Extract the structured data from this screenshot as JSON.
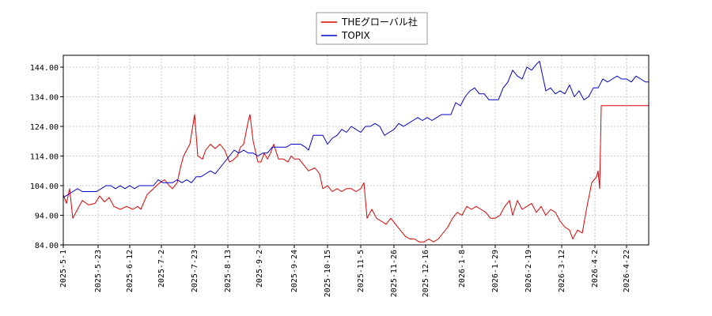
{
  "chart_data": {
    "type": "line",
    "title": "",
    "xlabel": "",
    "ylabel": "",
    "ylim": [
      84,
      148
    ],
    "xlim": [
      "2025-05-01",
      "2026-05-06"
    ],
    "grid": true,
    "legend_position": "top-center",
    "y_ticks": [
      "84.00",
      "94.00",
      "104.00",
      "114.00",
      "124.00",
      "134.00",
      "144.00"
    ],
    "x_ticks": [
      "2025-5-1",
      "2025-5-23",
      "2025-6-12",
      "2025-7-2",
      "2025-7-23",
      "2025-8-13",
      "2025-9-2",
      "2025-9-24",
      "2025-10-15",
      "2025-11-5",
      "2025-11-26",
      "2025-12-16",
      "2026-1-8",
      "2026-1-29",
      "2026-2-19",
      "2026-3-12",
      "2026-4-2",
      "2026-4-22"
    ],
    "series": [
      {
        "name": "THEグローバル社",
        "color": "#dd0000",
        "points": [
          [
            "2025-05-01",
            101.0
          ],
          [
            "2025-05-03",
            98.0
          ],
          [
            "2025-05-05",
            103.0
          ],
          [
            "2025-05-07",
            93.0
          ],
          [
            "2025-05-10",
            96.0
          ],
          [
            "2025-05-13",
            99.0
          ],
          [
            "2025-05-17",
            97.5
          ],
          [
            "2025-05-21",
            98.0
          ],
          [
            "2025-05-24",
            100.5
          ],
          [
            "2025-05-27",
            98.5
          ],
          [
            "2025-05-30",
            100.0
          ],
          [
            "2025-06-02",
            97.0
          ],
          [
            "2025-06-06",
            96.0
          ],
          [
            "2025-06-10",
            97.0
          ],
          [
            "2025-06-14",
            96.0
          ],
          [
            "2025-06-17",
            97.0
          ],
          [
            "2025-06-19",
            96.0
          ],
          [
            "2025-06-23",
            101.0
          ],
          [
            "2025-06-27",
            103.0
          ],
          [
            "2025-07-01",
            105.0
          ],
          [
            "2025-07-04",
            106.0
          ],
          [
            "2025-07-07",
            104.0
          ],
          [
            "2025-07-09",
            103.0
          ],
          [
            "2025-07-12",
            105.0
          ],
          [
            "2025-07-14",
            110.0
          ],
          [
            "2025-07-16",
            114.0
          ],
          [
            "2025-07-18",
            116.0
          ],
          [
            "2025-07-20",
            118.0
          ],
          [
            "2025-07-23",
            128.0
          ],
          [
            "2025-07-25",
            114.0
          ],
          [
            "2025-07-28",
            113.0
          ],
          [
            "2025-07-30",
            116.0
          ],
          [
            "2025-08-02",
            118.0
          ],
          [
            "2025-08-05",
            116.5
          ],
          [
            "2025-08-08",
            118.0
          ],
          [
            "2025-08-11",
            116.0
          ],
          [
            "2025-08-14",
            112.0
          ],
          [
            "2025-08-16",
            112.5
          ],
          [
            "2025-08-19",
            114.0
          ],
          [
            "2025-08-21",
            117.0
          ],
          [
            "2025-08-23",
            118.0
          ],
          [
            "2025-08-26",
            126.0
          ],
          [
            "2025-08-27",
            128.0
          ],
          [
            "2025-08-29",
            119.0
          ],
          [
            "2025-09-01",
            112.0
          ],
          [
            "2025-09-03",
            112.0
          ],
          [
            "2025-09-05",
            115.0
          ],
          [
            "2025-09-07",
            113.0
          ],
          [
            "2025-09-09",
            115.0
          ],
          [
            "2025-09-11",
            118.0
          ],
          [
            "2025-09-14",
            113.0
          ],
          [
            "2025-09-17",
            113.0
          ],
          [
            "2025-09-20",
            112.0
          ],
          [
            "2025-09-22",
            114.0
          ],
          [
            "2025-09-24",
            113.0
          ],
          [
            "2025-09-27",
            113.0
          ],
          [
            "2025-09-30",
            111.0
          ],
          [
            "2025-10-03",
            109.0
          ],
          [
            "2025-10-07",
            110.0
          ],
          [
            "2025-10-10",
            108.0
          ],
          [
            "2025-10-12",
            103.0
          ],
          [
            "2025-10-15",
            104.0
          ],
          [
            "2025-10-18",
            102.0
          ],
          [
            "2025-10-21",
            103.0
          ],
          [
            "2025-10-24",
            102.0
          ],
          [
            "2025-10-27",
            103.0
          ],
          [
            "2025-10-30",
            103.0
          ],
          [
            "2025-11-02",
            102.0
          ],
          [
            "2025-11-05",
            103.0
          ],
          [
            "2025-11-07",
            105.0
          ],
          [
            "2025-11-09",
            93.0
          ],
          [
            "2025-11-12",
            96.0
          ],
          [
            "2025-11-15",
            93.0
          ],
          [
            "2025-11-18",
            92.0
          ],
          [
            "2025-11-21",
            91.0
          ],
          [
            "2025-11-24",
            93.0
          ],
          [
            "2025-11-27",
            91.0
          ],
          [
            "2025-11-30",
            89.0
          ],
          [
            "2025-12-03",
            87.0
          ],
          [
            "2025-12-06",
            86.0
          ],
          [
            "2025-12-09",
            86.0
          ],
          [
            "2025-12-12",
            85.0
          ],
          [
            "2025-12-15",
            85.0
          ],
          [
            "2025-12-18",
            86.0
          ],
          [
            "2025-12-21",
            85.0
          ],
          [
            "2025-12-24",
            86.0
          ],
          [
            "2025-12-27",
            88.0
          ],
          [
            "2025-12-30",
            90.0
          ],
          [
            "2026-01-02",
            93.0
          ],
          [
            "2026-01-05",
            95.0
          ],
          [
            "2026-01-08",
            94.0
          ],
          [
            "2026-01-11",
            97.0
          ],
          [
            "2026-01-14",
            96.0
          ],
          [
            "2026-01-17",
            97.0
          ],
          [
            "2026-01-20",
            96.0
          ],
          [
            "2026-01-23",
            95.0
          ],
          [
            "2026-01-26",
            93.0
          ],
          [
            "2026-01-29",
            93.0
          ],
          [
            "2026-02-01",
            94.0
          ],
          [
            "2026-02-04",
            97.0
          ],
          [
            "2026-02-07",
            99.0
          ],
          [
            "2026-02-09",
            94.0
          ],
          [
            "2026-02-12",
            99.0
          ],
          [
            "2026-02-15",
            96.0
          ],
          [
            "2026-02-18",
            97.0
          ],
          [
            "2026-02-21",
            98.0
          ],
          [
            "2026-02-24",
            95.0
          ],
          [
            "2026-02-27",
            97.0
          ],
          [
            "2026-03-02",
            94.0
          ],
          [
            "2026-03-05",
            96.0
          ],
          [
            "2026-03-08",
            95.0
          ],
          [
            "2026-03-11",
            92.0
          ],
          [
            "2026-03-14",
            90.0
          ],
          [
            "2026-03-17",
            89.0
          ],
          [
            "2026-03-19",
            86.0
          ],
          [
            "2026-03-22",
            89.0
          ],
          [
            "2026-03-25",
            88.0
          ],
          [
            "2026-03-28",
            97.0
          ],
          [
            "2026-03-31",
            105.0
          ],
          [
            "2026-04-03",
            107.0
          ],
          [
            "2026-04-04",
            109.0
          ],
          [
            "2026-04-05",
            103.0
          ],
          [
            "2026-04-06",
            131.0
          ],
          [
            "2026-05-06",
            131.0
          ]
        ]
      },
      {
        "name": "TOPIX",
        "color": "#0000cc",
        "points": [
          [
            "2025-05-01",
            100.0
          ],
          [
            "2025-05-04",
            101.0
          ],
          [
            "2025-05-07",
            102.0
          ],
          [
            "2025-05-10",
            103.0
          ],
          [
            "2025-05-13",
            102.0
          ],
          [
            "2025-05-16",
            102.0
          ],
          [
            "2025-05-19",
            102.0
          ],
          [
            "2025-05-22",
            102.0
          ],
          [
            "2025-05-25",
            103.0
          ],
          [
            "2025-05-28",
            104.0
          ],
          [
            "2025-05-31",
            104.0
          ],
          [
            "2025-06-03",
            103.0
          ],
          [
            "2025-06-06",
            104.0
          ],
          [
            "2025-06-09",
            103.0
          ],
          [
            "2025-06-12",
            104.0
          ],
          [
            "2025-06-15",
            103.0
          ],
          [
            "2025-06-18",
            104.0
          ],
          [
            "2025-06-21",
            104.0
          ],
          [
            "2025-06-24",
            104.0
          ],
          [
            "2025-06-27",
            104.0
          ],
          [
            "2025-06-30",
            106.0
          ],
          [
            "2025-07-03",
            105.0
          ],
          [
            "2025-07-06",
            105.0
          ],
          [
            "2025-07-09",
            105.0
          ],
          [
            "2025-07-12",
            106.0
          ],
          [
            "2025-07-15",
            105.0
          ],
          [
            "2025-07-18",
            106.0
          ],
          [
            "2025-07-21",
            105.0
          ],
          [
            "2025-07-24",
            107.0
          ],
          [
            "2025-07-27",
            107.0
          ],
          [
            "2025-07-30",
            108.0
          ],
          [
            "2025-08-02",
            109.0
          ],
          [
            "2025-08-05",
            108.0
          ],
          [
            "2025-08-08",
            110.0
          ],
          [
            "2025-08-11",
            112.0
          ],
          [
            "2025-08-14",
            114.0
          ],
          [
            "2025-08-17",
            116.0
          ],
          [
            "2025-08-20",
            115.0
          ],
          [
            "2025-08-23",
            116.0
          ],
          [
            "2025-08-26",
            115.0
          ],
          [
            "2025-08-29",
            115.0
          ],
          [
            "2025-09-01",
            114.0
          ],
          [
            "2025-09-04",
            115.0
          ],
          [
            "2025-09-07",
            115.0
          ],
          [
            "2025-09-10",
            117.0
          ],
          [
            "2025-09-13",
            117.0
          ],
          [
            "2025-09-16",
            117.0
          ],
          [
            "2025-09-19",
            117.0
          ],
          [
            "2025-09-22",
            118.0
          ],
          [
            "2025-09-25",
            118.0
          ],
          [
            "2025-09-28",
            118.0
          ],
          [
            "2025-10-01",
            117.0
          ],
          [
            "2025-10-03",
            116.0
          ],
          [
            "2025-10-06",
            121.0
          ],
          [
            "2025-10-09",
            121.0
          ],
          [
            "2025-10-12",
            121.0
          ],
          [
            "2025-10-15",
            118.0
          ],
          [
            "2025-10-18",
            120.0
          ],
          [
            "2025-10-21",
            121.0
          ],
          [
            "2025-10-24",
            123.0
          ],
          [
            "2025-10-27",
            122.0
          ],
          [
            "2025-10-30",
            124.0
          ],
          [
            "2025-11-02",
            123.0
          ],
          [
            "2025-11-05",
            122.0
          ],
          [
            "2025-11-08",
            124.0
          ],
          [
            "2025-11-11",
            124.0
          ],
          [
            "2025-11-14",
            125.0
          ],
          [
            "2025-11-17",
            124.0
          ],
          [
            "2025-11-20",
            121.0
          ],
          [
            "2025-11-23",
            122.0
          ],
          [
            "2025-11-26",
            123.0
          ],
          [
            "2025-11-29",
            125.0
          ],
          [
            "2025-12-02",
            124.0
          ],
          [
            "2025-12-05",
            125.0
          ],
          [
            "2025-12-08",
            126.0
          ],
          [
            "2025-12-11",
            127.0
          ],
          [
            "2025-12-14",
            126.0
          ],
          [
            "2025-12-17",
            127.0
          ],
          [
            "2025-12-20",
            126.0
          ],
          [
            "2025-12-23",
            127.0
          ],
          [
            "2025-12-26",
            128.0
          ],
          [
            "2025-12-29",
            128.0
          ],
          [
            "2026-01-01",
            128.0
          ],
          [
            "2026-01-04",
            132.0
          ],
          [
            "2026-01-07",
            131.0
          ],
          [
            "2026-01-10",
            134.0
          ],
          [
            "2026-01-13",
            136.0
          ],
          [
            "2026-01-16",
            137.0
          ],
          [
            "2026-01-19",
            135.0
          ],
          [
            "2026-01-22",
            135.0
          ],
          [
            "2026-01-25",
            133.0
          ],
          [
            "2026-01-28",
            133.0
          ],
          [
            "2026-01-31",
            133.0
          ],
          [
            "2026-02-03",
            137.0
          ],
          [
            "2026-02-06",
            139.0
          ],
          [
            "2026-02-09",
            143.0
          ],
          [
            "2026-02-12",
            141.0
          ],
          [
            "2026-02-15",
            140.0
          ],
          [
            "2026-02-18",
            144.0
          ],
          [
            "2026-02-21",
            143.0
          ],
          [
            "2026-02-24",
            145.0
          ],
          [
            "2026-02-26",
            146.0
          ],
          [
            "2026-02-28",
            141.0
          ],
          [
            "2026-03-02",
            136.0
          ],
          [
            "2026-03-05",
            137.0
          ],
          [
            "2026-03-08",
            135.0
          ],
          [
            "2026-03-11",
            136.0
          ],
          [
            "2026-03-14",
            135.0
          ],
          [
            "2026-03-17",
            138.0
          ],
          [
            "2026-03-20",
            134.0
          ],
          [
            "2026-03-23",
            136.0
          ],
          [
            "2026-03-26",
            133.0
          ],
          [
            "2026-03-29",
            134.0
          ],
          [
            "2026-04-01",
            137.0
          ],
          [
            "2026-04-04",
            137.0
          ],
          [
            "2026-04-07",
            140.0
          ],
          [
            "2026-04-10",
            139.0
          ],
          [
            "2026-04-13",
            140.0
          ],
          [
            "2026-04-16",
            141.0
          ],
          [
            "2026-04-19",
            140.0
          ],
          [
            "2026-04-22",
            140.0
          ],
          [
            "2026-04-25",
            139.0
          ],
          [
            "2026-04-28",
            141.0
          ],
          [
            "2026-05-01",
            140.0
          ],
          [
            "2026-05-04",
            139.0
          ],
          [
            "2026-05-06",
            139.0
          ]
        ]
      }
    ]
  }
}
